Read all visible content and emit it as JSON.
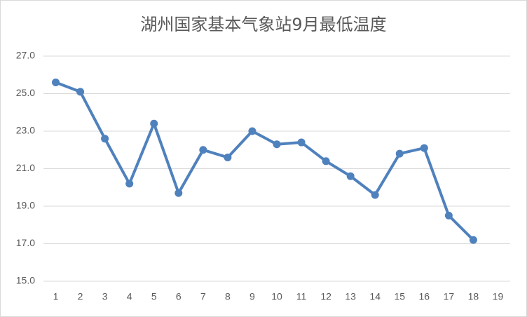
{
  "chart_data": {
    "type": "line",
    "title": "湖州国家基本气象站9月最低温度",
    "categories": [
      "1",
      "2",
      "3",
      "4",
      "5",
      "6",
      "7",
      "8",
      "9",
      "10",
      "11",
      "12",
      "13",
      "14",
      "15",
      "16",
      "17",
      "18",
      "19"
    ],
    "values": [
      25.6,
      25.1,
      22.6,
      20.2,
      23.4,
      19.7,
      22.0,
      21.6,
      23.0,
      22.3,
      22.4,
      21.4,
      20.6,
      19.6,
      21.8,
      22.1,
      18.5,
      17.2,
      null
    ],
    "color": "#4f81bd",
    "ylim": [
      15,
      27
    ],
    "yticks": [
      {
        "value": 15,
        "label": "15.0"
      },
      {
        "value": 17,
        "label": "17.0"
      },
      {
        "value": 19,
        "label": "19.0"
      },
      {
        "value": 21,
        "label": "21.0"
      },
      {
        "value": 23,
        "label": "23.0"
      },
      {
        "value": 25,
        "label": "25.0"
      },
      {
        "value": 27,
        "label": "27.0"
      }
    ],
    "grid": true
  }
}
